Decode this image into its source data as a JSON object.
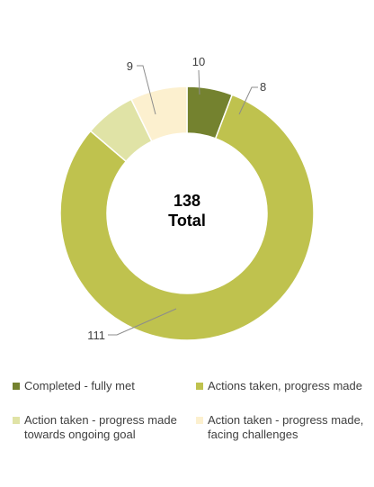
{
  "chart_data": {
    "type": "pie",
    "variant": "doughnut",
    "center_label": {
      "value": "138",
      "text": "Total"
    },
    "slices": [
      {
        "name": "Completed - fully met",
        "value": 8,
        "color": "#74822f"
      },
      {
        "name": "Actions taken, progress made",
        "value": 111,
        "color": "#bfc24e"
      },
      {
        "name": "Action taken - progress made towards ongoing goal",
        "value": 9,
        "color": "#e0e3a6"
      },
      {
        "name": "Action taken - progress made, facing challenges",
        "value": 10,
        "color": "#fcf0cf"
      }
    ],
    "legend": {
      "position": "bottom",
      "entries": [
        {
          "label": "Completed - fully met",
          "color": "#74822f"
        },
        {
          "label": "Actions taken, progress made",
          "color": "#bfc24e"
        },
        {
          "label": "Action taken - progress made\ntowards ongoing goal",
          "color": "#e0e3a6"
        },
        {
          "label": "Action taken - progress made,\nfacing challenges",
          "color": "#fcf0cf"
        }
      ]
    }
  }
}
